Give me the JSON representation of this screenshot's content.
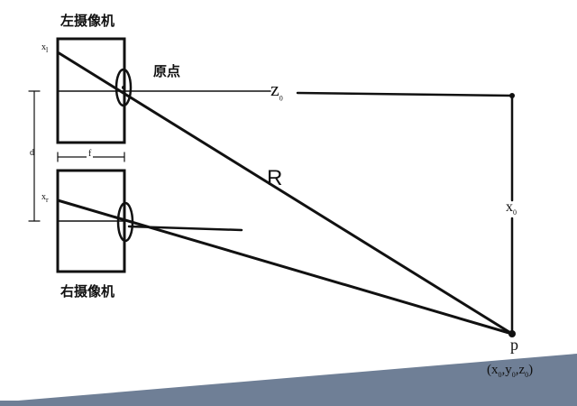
{
  "colors": {
    "paper": "#ffffff",
    "backdrop": "#6f7f96",
    "ink": "#111111"
  },
  "labels": {
    "left_camera": "左摄像机",
    "right_camera": "右摄像机",
    "origin": "原点",
    "z0": "z",
    "z0_sub": "0",
    "r": "R",
    "x0": "x",
    "x0_sub": "0",
    "xl": "x",
    "xl_sub": "l",
    "xr": "x",
    "xr_sub": "r",
    "d": "d",
    "f": "f",
    "p": "p",
    "p_coords_text": "(x",
    "p_coords_sub1": "0",
    "p_coords_sep1": ",y",
    "p_coords_sub2": "0",
    "p_coords_sep2": ",z",
    "p_coords_sub3": "0",
    "p_coords_close": ")"
  }
}
